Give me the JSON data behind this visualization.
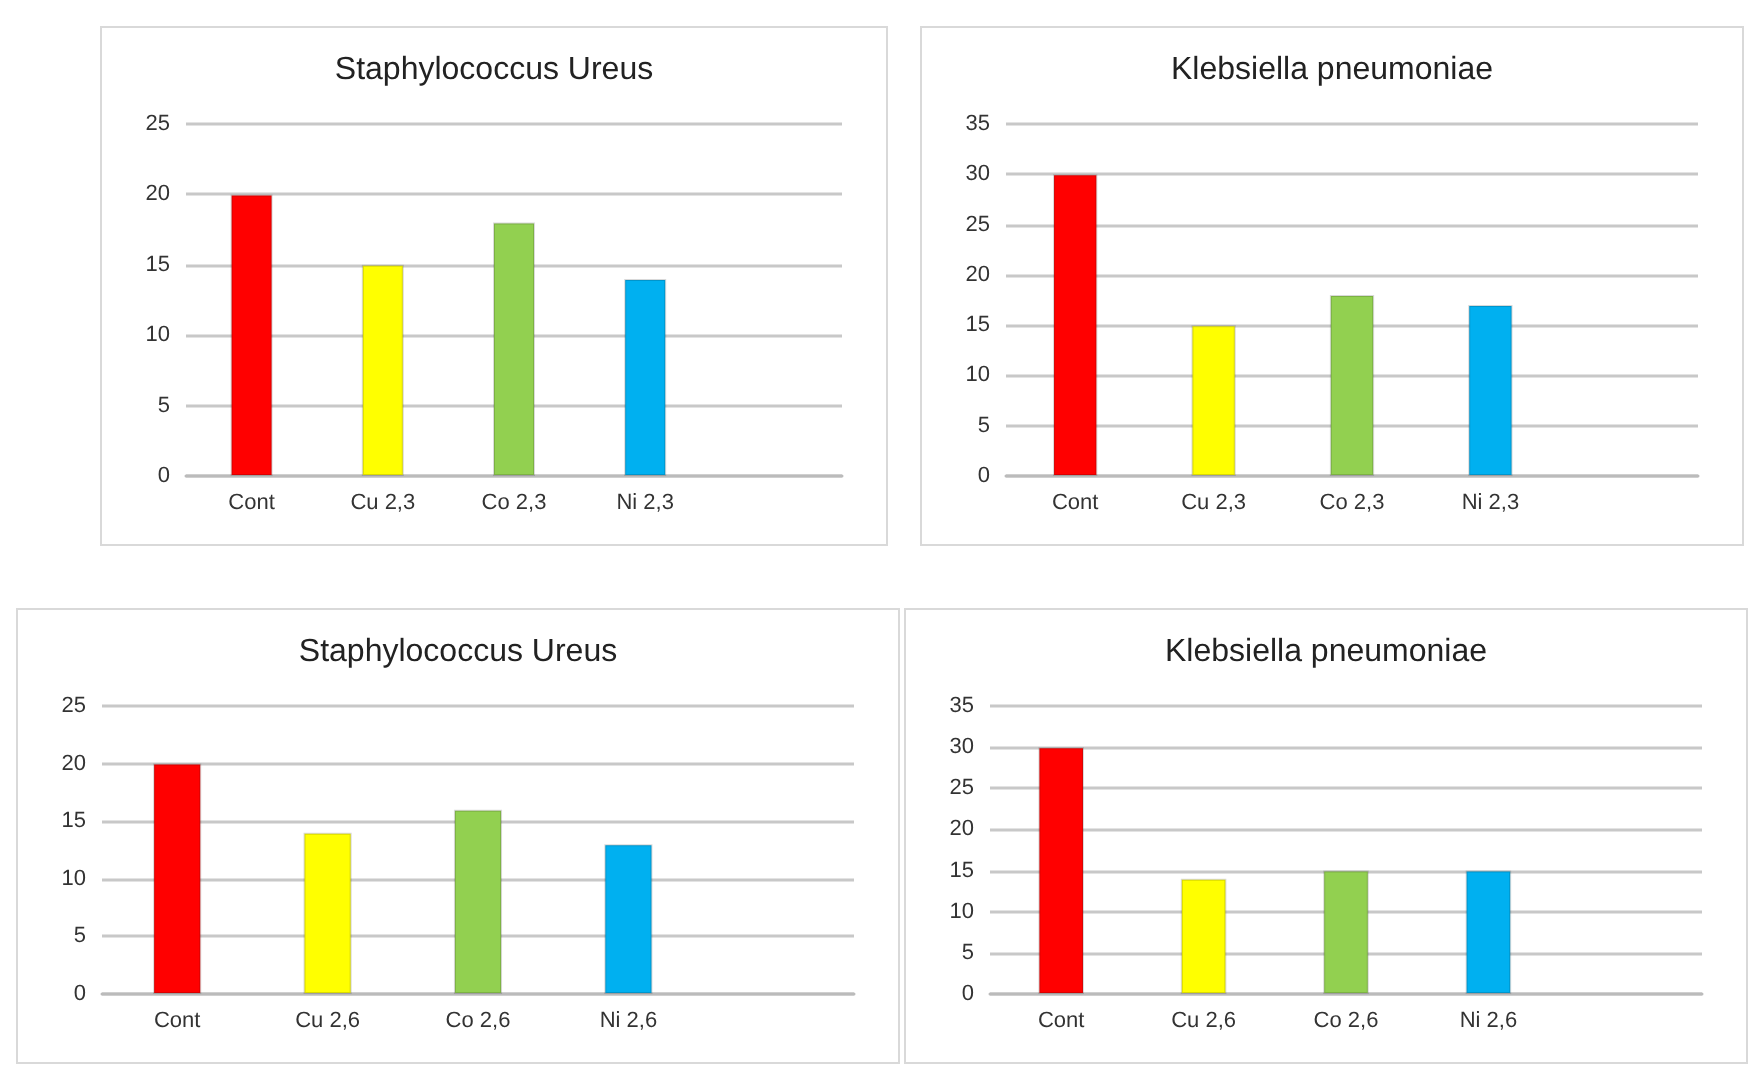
{
  "chart_data": [
    {
      "type": "bar",
      "title": "Staphylococcus Ureus",
      "categories": [
        "Cont",
        "Cu 2,3",
        "Co 2,3",
        "Ni 2,3",
        null
      ],
      "values": [
        20,
        15,
        18,
        14,
        null
      ],
      "colors": [
        "#ff0000",
        "#ffff00",
        "#92d050",
        "#00b0f0",
        null
      ],
      "ylim": [
        0,
        25
      ],
      "yticks": [
        0,
        5,
        10,
        15,
        20,
        25
      ],
      "grid": "y"
    },
    {
      "type": "bar",
      "title": "Klebsiella pneumoniae",
      "categories": [
        "Cont",
        "Cu 2,3",
        "Co 2,3",
        "Ni 2,3",
        null
      ],
      "values": [
        30,
        15,
        18,
        17,
        null
      ],
      "colors": [
        "#ff0000",
        "#ffff00",
        "#92d050",
        "#00b0f0",
        null
      ],
      "ylim": [
        0,
        35
      ],
      "yticks": [
        0,
        5,
        10,
        15,
        20,
        25,
        30,
        35
      ],
      "grid": "y"
    },
    {
      "type": "bar",
      "title": "Staphylococcus Ureus",
      "categories": [
        "Cont",
        "Cu 2,6",
        "Co 2,6",
        "Ni 2,6",
        null
      ],
      "values": [
        20,
        14,
        16,
        13,
        null
      ],
      "colors": [
        "#ff0000",
        "#ffff00",
        "#92d050",
        "#00b0f0",
        null
      ],
      "ylim": [
        0,
        25
      ],
      "yticks": [
        0,
        5,
        10,
        15,
        20,
        25
      ],
      "grid": "y"
    },
    {
      "type": "bar",
      "title": "Klebsiella pneumoniae",
      "categories": [
        "Cont",
        "Cu 2,6",
        "Co 2,6",
        "Ni 2,6",
        null
      ],
      "values": [
        30,
        14,
        15,
        15,
        null
      ],
      "colors": [
        "#ff0000",
        "#ffff00",
        "#92d050",
        "#00b0f0",
        null
      ],
      "ylim": [
        0,
        35
      ],
      "yticks": [
        0,
        5,
        10,
        15,
        20,
        25,
        30,
        35
      ],
      "grid": "y"
    }
  ]
}
